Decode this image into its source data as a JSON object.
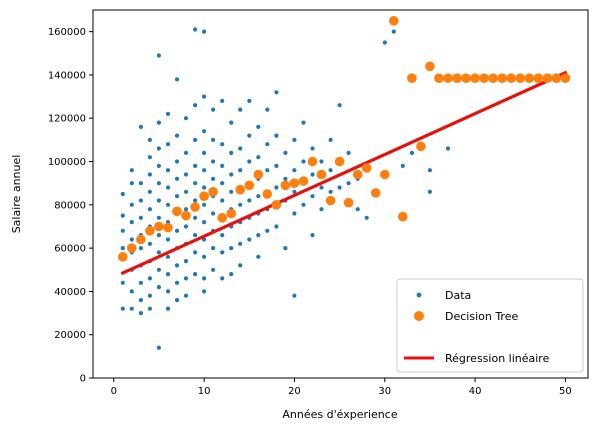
{
  "chart_data": {
    "type": "scatter",
    "title": "",
    "xlabel": "Années d'éxperience",
    "ylabel": "Salaire annuel",
    "xlim": [
      -2.3,
      52.5
    ],
    "ylim": [
      0,
      170000
    ],
    "xticks": [
      0,
      10,
      20,
      30,
      40,
      50
    ],
    "yticks": [
      0,
      20000,
      40000,
      60000,
      80000,
      100000,
      120000,
      140000,
      160000
    ],
    "grid": false,
    "legend_position": "bottom-right",
    "colors": {
      "data": "#1f77b4",
      "tree": "#ff7f0e",
      "regression": "#e8100b"
    },
    "series": [
      {
        "name": "Data",
        "kind": "scatter-small",
        "x": [
          1,
          1,
          1,
          1,
          1,
          1,
          1,
          2,
          2,
          2,
          2,
          2,
          2,
          2,
          2,
          2,
          3,
          3,
          3,
          3,
          3,
          3,
          3,
          3,
          3,
          3,
          4,
          4,
          4,
          4,
          4,
          4,
          4,
          4,
          4,
          4,
          4,
          5,
          5,
          5,
          5,
          5,
          5,
          5,
          5,
          5,
          5,
          5,
          5,
          6,
          6,
          6,
          6,
          6,
          6,
          6,
          6,
          6,
          6,
          6,
          7,
          7,
          7,
          7,
          7,
          7,
          7,
          7,
          7,
          7,
          7,
          8,
          8,
          8,
          8,
          8,
          8,
          8,
          8,
          8,
          8,
          9,
          9,
          9,
          9,
          9,
          9,
          9,
          9,
          9,
          9,
          10,
          10,
          10,
          10,
          10,
          10,
          10,
          10,
          10,
          10,
          10,
          10,
          11,
          11,
          11,
          11,
          11,
          11,
          11,
          11,
          11,
          12,
          12,
          12,
          12,
          12,
          12,
          12,
          12,
          12,
          13,
          13,
          13,
          13,
          13,
          13,
          13,
          13,
          14,
          14,
          14,
          14,
          14,
          14,
          14,
          14,
          15,
          15,
          15,
          15,
          15,
          15,
          15,
          16,
          16,
          16,
          16,
          16,
          16,
          16,
          17,
          17,
          17,
          17,
          17,
          17,
          18,
          18,
          18,
          18,
          18,
          18,
          19,
          19,
          19,
          19,
          20,
          20,
          20,
          20,
          20,
          21,
          21,
          21,
          21,
          22,
          22,
          22,
          22,
          23,
          23,
          23,
          24,
          24,
          24,
          25,
          25,
          25,
          26,
          26,
          27,
          27,
          28,
          28,
          29,
          30,
          30,
          31,
          32,
          33,
          35,
          35,
          37
        ],
        "y": [
          56000,
          60000,
          68000,
          75000,
          85000,
          44000,
          32000,
          58000,
          64000,
          72000,
          80000,
          90000,
          50000,
          40000,
          32000,
          96000,
          52000,
          60000,
          66000,
          74000,
          82000,
          90000,
          44000,
          116000,
          30000,
          36000,
          54000,
          62000,
          70000,
          78000,
          86000,
          94000,
          102000,
          46000,
          38000,
          110000,
          32000,
          58000,
          66000,
          74000,
          82000,
          90000,
          98000,
          106000,
          50000,
          42000,
          118000,
          149000,
          14000,
          56000,
          64000,
          72000,
          80000,
          88000,
          96000,
          108000,
          48000,
          40000,
          122000,
          32000,
          60000,
          68000,
          76000,
          84000,
          92000,
          100000,
          112000,
          52000,
          44000,
          138000,
          36000,
          62000,
          70000,
          78000,
          86000,
          94000,
          104000,
          120000,
          54000,
          46000,
          38000,
          66000,
          74000,
          82000,
          90000,
          98000,
          110000,
          126000,
          58000,
          48000,
          161000,
          64000,
          72000,
          80000,
          88000,
          96000,
          104000,
          114000,
          130000,
          56000,
          46000,
          160000,
          40000,
          68000,
          76000,
          84000,
          92000,
          100000,
          110000,
          124000,
          60000,
          50000,
          66000,
          74000,
          82000,
          90000,
          98000,
          108000,
          128000,
          58000,
          46000,
          70000,
          78000,
          86000,
          94000,
          104000,
          118000,
          60000,
          48000,
          72000,
          80000,
          88000,
          96000,
          106000,
          124000,
          62000,
          52000,
          74000,
          82000,
          90000,
          100000,
          112000,
          128000,
          64000,
          76000,
          84000,
          92000,
          102000,
          116000,
          66000,
          56000,
          78000,
          86000,
          96000,
          108000,
          124000,
          68000,
          80000,
          88000,
          98000,
          112000,
          132000,
          70000,
          82000,
          92000,
          104000,
          60000,
          76000,
          86000,
          96000,
          110000,
          38000,
          80000,
          90000,
          100000,
          118000,
          84000,
          94000,
          106000,
          66000,
          78000,
          88000,
          100000,
          86000,
          96000,
          110000,
          88000,
          100000,
          126000,
          90000,
          104000,
          92000,
          78000,
          96000,
          74000,
          86000,
          94000,
          155000,
          160000,
          98000,
          104000,
          86000,
          96000,
          106000
        ]
      },
      {
        "name": "Decision Tree",
        "kind": "scatter-large",
        "x": [
          1,
          2,
          3,
          4,
          5,
          6,
          7,
          8,
          9,
          10,
          11,
          12,
          13,
          14,
          15,
          16,
          17,
          18,
          19,
          20,
          21,
          22,
          23,
          24,
          25,
          26,
          27,
          28,
          29,
          30,
          31,
          32,
          33,
          34,
          35,
          36,
          37,
          38,
          39,
          40,
          41,
          42,
          43,
          44,
          45,
          46,
          47,
          48,
          49,
          50
        ],
        "y": [
          56000,
          60000,
          64000,
          68000,
          70000,
          69500,
          77000,
          75000,
          79000,
          84000,
          86000,
          74000,
          76000,
          87000,
          89000,
          94000,
          85000,
          80000,
          89000,
          90000,
          91000,
          100000,
          94000,
          82000,
          100000,
          81000,
          94000,
          97000,
          85500,
          94000,
          165000,
          74500,
          138500,
          107000,
          144000,
          138500,
          138500,
          138500,
          138500,
          138500,
          138500,
          138500,
          138500,
          138500,
          138500,
          138500,
          138500,
          138500,
          138500,
          138500
        ]
      },
      {
        "name": "Régression linéaire",
        "kind": "line",
        "x": [
          1,
          50
        ],
        "y": [
          48500,
          141000
        ]
      }
    ]
  }
}
